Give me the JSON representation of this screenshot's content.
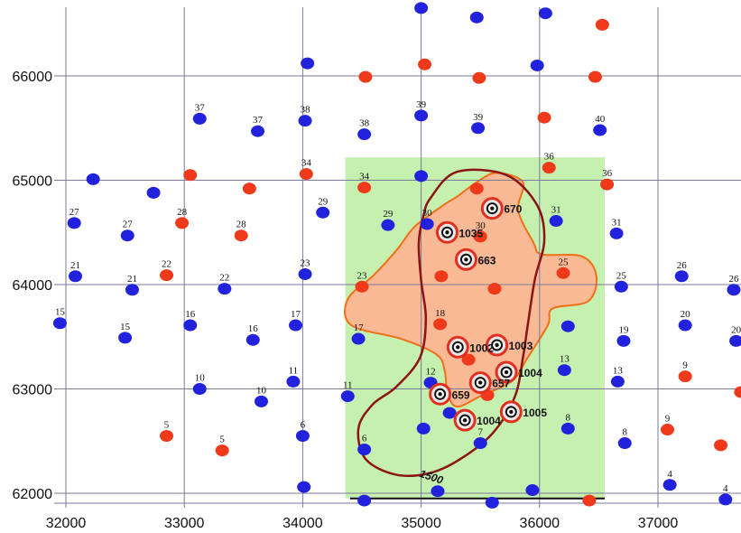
{
  "chart_data": {
    "type": "scatter",
    "title": "",
    "xlabel": "",
    "ylabel": "",
    "xlim": [
      32000,
      37700
    ],
    "ylim": [
      61900,
      66650
    ],
    "x_ticks": [
      "32000",
      "33000",
      "34000",
      "35000",
      "36000",
      "37000"
    ],
    "y_ticks": [
      "62000",
      "63000",
      "64000",
      "65000",
      "66000"
    ],
    "grid": true,
    "colors": {
      "blue_well": "#2222dd",
      "red_well": "#ee3a1a",
      "green_area": "#c6f0b0",
      "orange_area": "#f8b994",
      "orange_edge": "#f07018",
      "contour": "#8b1414",
      "grid": "#7a7a9a"
    },
    "contour_label": "1500",
    "series": [
      {
        "color": "blue",
        "points": [
          {
            "x": 32070,
            "y": 64590,
            "label": "27"
          },
          {
            "x": 32080,
            "y": 64080,
            "label": "21"
          },
          {
            "x": 32230,
            "y": 65010,
            "label": ""
          },
          {
            "x": 31950,
            "y": 63630,
            "label": "15"
          },
          {
            "x": 32520,
            "y": 64470,
            "label": "27"
          },
          {
            "x": 32560,
            "y": 63950,
            "label": "21"
          },
          {
            "x": 32500,
            "y": 63490,
            "label": "15"
          },
          {
            "x": 32740,
            "y": 64880,
            "label": ""
          },
          {
            "x": 33050,
            "y": 63610,
            "label": "16"
          },
          {
            "x": 33130,
            "y": 63000,
            "label": "10"
          },
          {
            "x": 33130,
            "y": 65590,
            "label": "37"
          },
          {
            "x": 33340,
            "y": 63960,
            "label": "22"
          },
          {
            "x": 33580,
            "y": 63470,
            "label": "16"
          },
          {
            "x": 33620,
            "y": 65470,
            "label": "37"
          },
          {
            "x": 33650,
            "y": 62880,
            "label": "10"
          },
          {
            "x": 33920,
            "y": 63070,
            "label": "11"
          },
          {
            "x": 33940,
            "y": 63610,
            "label": "17"
          },
          {
            "x": 34020,
            "y": 64100,
            "label": "23"
          },
          {
            "x": 34020,
            "y": 65570,
            "label": "38"
          },
          {
            "x": 34040,
            "y": 66120,
            "label": ""
          },
          {
            "x": 34000,
            "y": 62550,
            "label": "6"
          },
          {
            "x": 34010,
            "y": 62060,
            "label": ""
          },
          {
            "x": 34170,
            "y": 64690,
            "label": "29"
          },
          {
            "x": 34380,
            "y": 62930,
            "label": "11"
          },
          {
            "x": 34470,
            "y": 63480,
            "label": "17"
          },
          {
            "x": 34520,
            "y": 62420,
            "label": "6"
          },
          {
            "x": 34520,
            "y": 61930,
            "label": ""
          },
          {
            "x": 34520,
            "y": 65440,
            "label": "38"
          },
          {
            "x": 34720,
            "y": 64570,
            "label": "29"
          },
          {
            "x": 35000,
            "y": 65620,
            "label": "39"
          },
          {
            "x": 35000,
            "y": 65040,
            "label": ""
          },
          {
            "x": 35000,
            "y": 66650,
            "label": ""
          },
          {
            "x": 35050,
            "y": 64580,
            "label": "30"
          },
          {
            "x": 35080,
            "y": 63060,
            "label": "12"
          },
          {
            "x": 35020,
            "y": 62620,
            "label": ""
          },
          {
            "x": 35140,
            "y": 62020,
            "label": ""
          },
          {
            "x": 35240,
            "y": 62770,
            "label": ""
          },
          {
            "x": 35470,
            "y": 66560,
            "label": ""
          },
          {
            "x": 35480,
            "y": 65500,
            "label": "39"
          },
          {
            "x": 35500,
            "y": 62480,
            "label": "7"
          },
          {
            "x": 35600,
            "y": 61910,
            "label": ""
          },
          {
            "x": 35940,
            "y": 62030,
            "label": ""
          },
          {
            "x": 35980,
            "y": 66100,
            "label": ""
          },
          {
            "x": 36050,
            "y": 66600,
            "label": ""
          },
          {
            "x": 36140,
            "y": 64610,
            "label": "31"
          },
          {
            "x": 36210,
            "y": 63180,
            "label": "13"
          },
          {
            "x": 36240,
            "y": 63600,
            "label": ""
          },
          {
            "x": 36240,
            "y": 62620,
            "label": "8"
          },
          {
            "x": 36510,
            "y": 65480,
            "label": "40"
          },
          {
            "x": 36650,
            "y": 64490,
            "label": "31"
          },
          {
            "x": 36660,
            "y": 63070,
            "label": "13"
          },
          {
            "x": 36690,
            "y": 63980,
            "label": "25"
          },
          {
            "x": 36710,
            "y": 63460,
            "label": "19"
          },
          {
            "x": 36720,
            "y": 62480,
            "label": "8"
          },
          {
            "x": 37100,
            "y": 62080,
            "label": "4"
          },
          {
            "x": 37200,
            "y": 64080,
            "label": "26"
          },
          {
            "x": 37230,
            "y": 63610,
            "label": "20"
          },
          {
            "x": 37570,
            "y": 61940,
            "label": "4"
          },
          {
            "x": 37640,
            "y": 63950,
            "label": "26"
          },
          {
            "x": 37660,
            "y": 63460,
            "label": "20"
          }
        ]
      },
      {
        "color": "red",
        "points": [
          {
            "x": 32850,
            "y": 64090,
            "label": "22"
          },
          {
            "x": 32850,
            "y": 62550,
            "label": "5"
          },
          {
            "x": 32980,
            "y": 64590,
            "label": "28"
          },
          {
            "x": 33050,
            "y": 65050,
            "label": ""
          },
          {
            "x": 33320,
            "y": 62410,
            "label": "5"
          },
          {
            "x": 33480,
            "y": 64470,
            "label": "28"
          },
          {
            "x": 33550,
            "y": 64920,
            "label": ""
          },
          {
            "x": 34030,
            "y": 65060,
            "label": "34"
          },
          {
            "x": 34500,
            "y": 63980,
            "label": "23"
          },
          {
            "x": 34520,
            "y": 64930,
            "label": "34"
          },
          {
            "x": 34530,
            "y": 65990,
            "label": ""
          },
          {
            "x": 35030,
            "y": 66110,
            "label": ""
          },
          {
            "x": 35160,
            "y": 63620,
            "label": "18"
          },
          {
            "x": 35170,
            "y": 64080,
            "label": ""
          },
          {
            "x": 35400,
            "y": 63280,
            "label": ""
          },
          {
            "x": 35470,
            "y": 64920,
            "label": ""
          },
          {
            "x": 35490,
            "y": 65980,
            "label": ""
          },
          {
            "x": 35500,
            "y": 64460,
            "label": "30"
          },
          {
            "x": 35560,
            "y": 62940,
            "label": ""
          },
          {
            "x": 35620,
            "y": 63960,
            "label": ""
          },
          {
            "x": 36040,
            "y": 65600,
            "label": ""
          },
          {
            "x": 36080,
            "y": 65120,
            "label": "36"
          },
          {
            "x": 36200,
            "y": 64110,
            "label": "25"
          },
          {
            "x": 36420,
            "y": 61930,
            "label": ""
          },
          {
            "x": 36470,
            "y": 65990,
            "label": ""
          },
          {
            "x": 36530,
            "y": 66490,
            "label": ""
          },
          {
            "x": 36570,
            "y": 64960,
            "label": "36"
          },
          {
            "x": 37080,
            "y": 62610,
            "label": "9"
          },
          {
            "x": 37230,
            "y": 63120,
            "label": "9"
          },
          {
            "x": 37530,
            "y": 62460,
            "label": ""
          },
          {
            "x": 37700,
            "y": 62970,
            "label": ""
          }
        ]
      },
      {
        "color": "target",
        "points": [
          {
            "x": 35220,
            "y": 64500,
            "label": "1035"
          },
          {
            "x": 35380,
            "y": 64240,
            "label": "663"
          },
          {
            "x": 35600,
            "y": 64730,
            "label": "670"
          },
          {
            "x": 35310,
            "y": 63400,
            "label": "1002"
          },
          {
            "x": 35640,
            "y": 63420,
            "label": "1003"
          },
          {
            "x": 35720,
            "y": 63160,
            "label": "1004"
          },
          {
            "x": 35500,
            "y": 63060,
            "label": "657"
          },
          {
            "x": 35160,
            "y": 62950,
            "label": "659"
          },
          {
            "x": 35370,
            "y": 62700,
            "label": "1004"
          },
          {
            "x": 35760,
            "y": 62780,
            "label": "1005"
          }
        ]
      }
    ],
    "contour_1500": [
      [
        35080,
        64830
      ],
      [
        35300,
        65080
      ],
      [
        35720,
        65050
      ],
      [
        35980,
        64760
      ],
      [
        36040,
        64420
      ],
      [
        35960,
        64050
      ],
      [
        35900,
        63610
      ],
      [
        35860,
        63300
      ],
      [
        35790,
        62920
      ],
      [
        35600,
        62570
      ],
      [
        35320,
        62320
      ],
      [
        35060,
        62190
      ],
      [
        34780,
        62180
      ],
      [
        34530,
        62330
      ],
      [
        34470,
        62620
      ],
      [
        34590,
        62850
      ],
      [
        34790,
        63020
      ],
      [
        34990,
        63300
      ],
      [
        35040,
        63670
      ],
      [
        35000,
        64040
      ],
      [
        34980,
        64400
      ],
      [
        35020,
        64660
      ],
      [
        35080,
        64830
      ]
    ],
    "green_area": [
      [
        34360,
        65220
      ],
      [
        36550,
        65220
      ],
      [
        36550,
        61950
      ],
      [
        34360,
        61950
      ]
    ],
    "orange_area": [
      [
        35300,
        64840
      ],
      [
        35480,
        64990
      ],
      [
        35640,
        65070
      ],
      [
        35860,
        64980
      ],
      [
        35820,
        64710
      ],
      [
        35950,
        64400
      ],
      [
        36020,
        64290
      ],
      [
        36360,
        64270
      ],
      [
        36480,
        64080
      ],
      [
        36410,
        63840
      ],
      [
        36110,
        63770
      ],
      [
        36070,
        63610
      ],
      [
        35900,
        63300
      ],
      [
        35770,
        63080
      ],
      [
        35500,
        62930
      ],
      [
        35300,
        62830
      ],
      [
        35220,
        62970
      ],
      [
        35200,
        63170
      ],
      [
        35130,
        63330
      ],
      [
        34830,
        63480
      ],
      [
        34410,
        63610
      ],
      [
        34380,
        63860
      ],
      [
        34600,
        64090
      ],
      [
        34800,
        64340
      ],
      [
        34950,
        64560
      ],
      [
        35200,
        64770
      ],
      [
        35300,
        64840
      ]
    ]
  }
}
